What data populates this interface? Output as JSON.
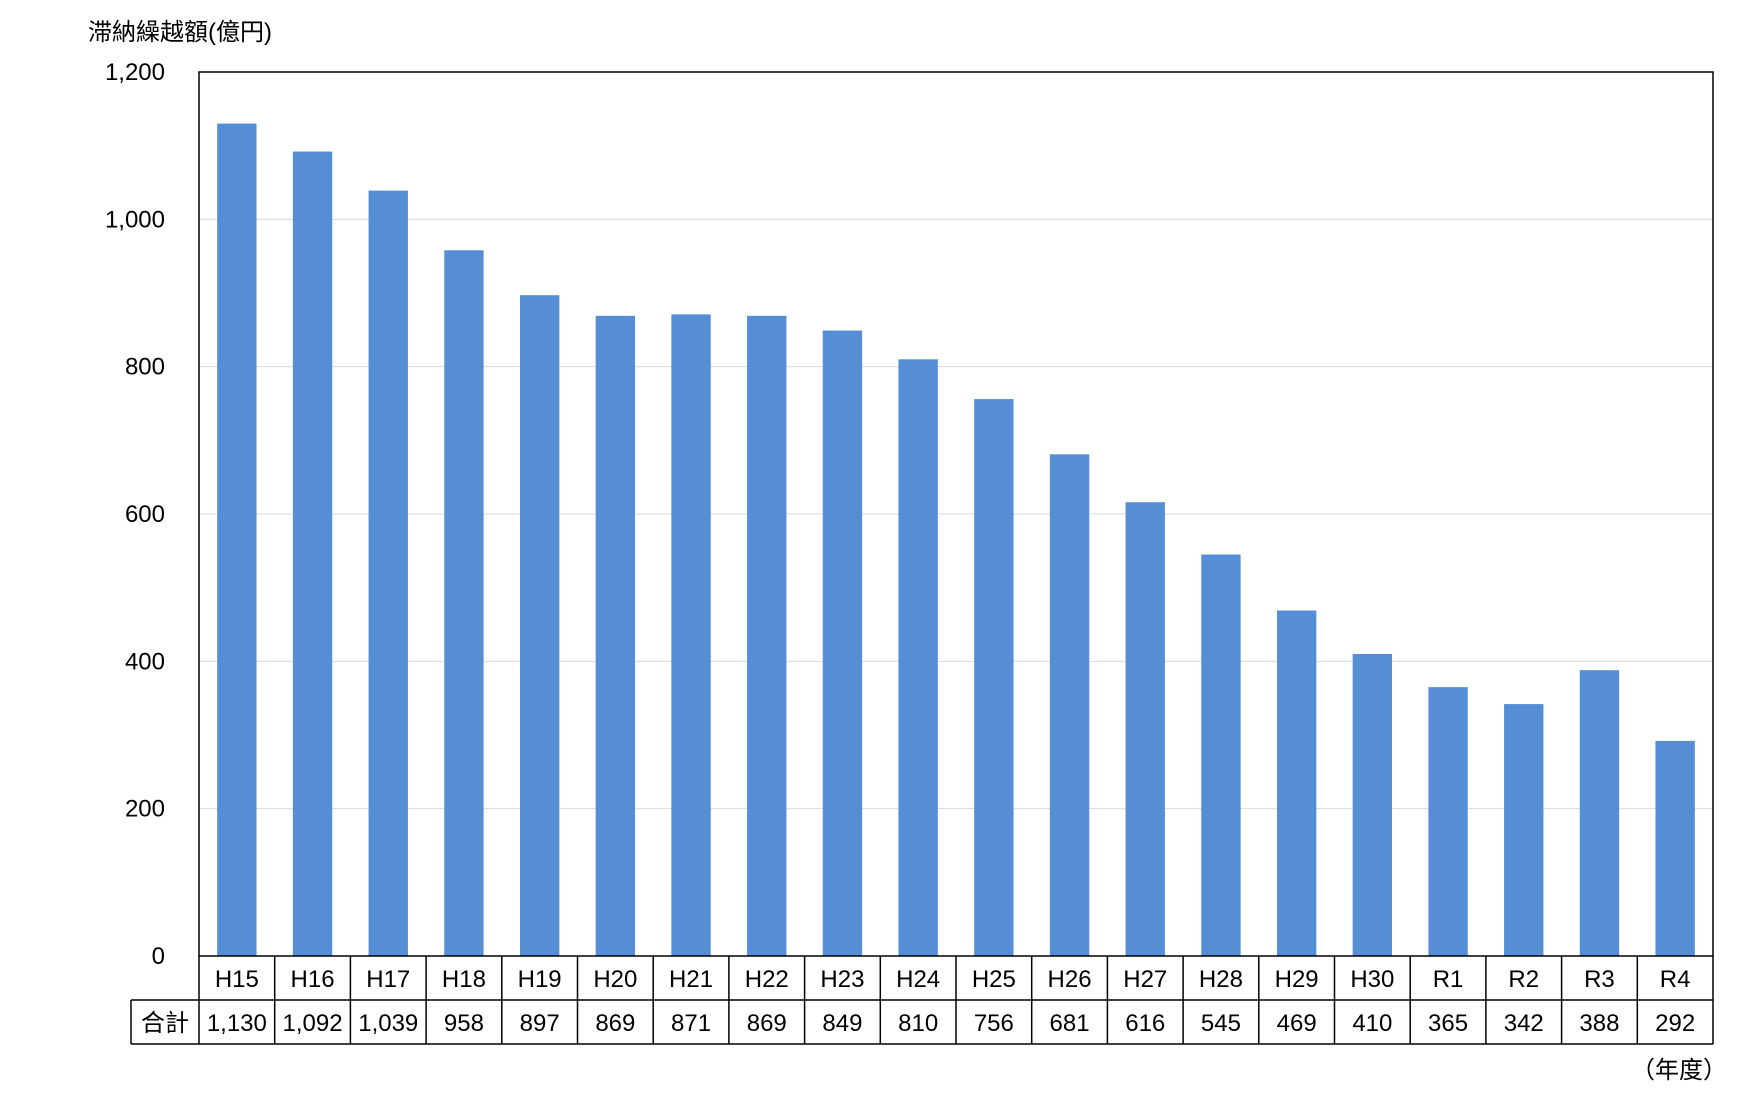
{
  "chart_data": {
    "type": "bar",
    "ylabel": "滞納繰越額(億円)",
    "xunit": "（年度）",
    "categories": [
      "H15",
      "H16",
      "H17",
      "H18",
      "H19",
      "H20",
      "H21",
      "H22",
      "H23",
      "H24",
      "H25",
      "H26",
      "H27",
      "H28",
      "H29",
      "H30",
      "R1",
      "R2",
      "R3",
      "R4"
    ],
    "values": [
      1130,
      1092,
      1039,
      958,
      897,
      869,
      871,
      869,
      849,
      810,
      756,
      681,
      616,
      545,
      469,
      410,
      365,
      342,
      388,
      292
    ],
    "value_labels": [
      "1,130",
      "1,092",
      "1,039",
      "958",
      "897",
      "869",
      "871",
      "869",
      "849",
      "810",
      "756",
      "681",
      "616",
      "545",
      "469",
      "410",
      "365",
      "342",
      "388",
      "292"
    ],
    "table_row_label": "合計",
    "ylim": [
      0,
      1200
    ],
    "yticks": [
      "0",
      "200",
      "400",
      "600",
      "800",
      "1,000",
      "1,200"
    ],
    "grid": true,
    "bar_color": "#558ED5"
  }
}
